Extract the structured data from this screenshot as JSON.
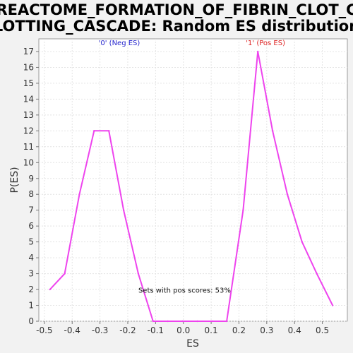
{
  "chart_data": {
    "type": "line",
    "title_lines": [
      "REACTOME_FORMATION_OF_FIBRIN_CLOT_C",
      "LOTTING_CASCADE: Random ES distribution"
    ],
    "xlabel": "ES",
    "ylabel": "P(ES)",
    "xlim": [
      -0.52,
      0.59
    ],
    "ylim": [
      0,
      17.8
    ],
    "x_ticks": [
      -0.5,
      -0.4,
      -0.3,
      -0.2,
      -0.1,
      0.0,
      0.1,
      0.2,
      0.3,
      0.4,
      0.5
    ],
    "x_tick_labels": [
      "-0.5",
      "-0.4",
      "-0.3",
      "-0.2",
      "-0.1",
      "0.0",
      "0.1",
      "0.2",
      "0.3",
      "0.4",
      "0.5"
    ],
    "y_ticks": [
      0,
      1,
      2,
      3,
      4,
      5,
      6,
      7,
      8,
      9,
      10,
      11,
      12,
      13,
      14,
      15,
      16,
      17
    ],
    "grid": true,
    "series": [
      {
        "color": "#ee44ee",
        "points": [
          [
            -0.48,
            2
          ],
          [
            -0.427,
            3
          ],
          [
            -0.374,
            8
          ],
          [
            -0.321,
            12
          ],
          [
            -0.268,
            12
          ],
          [
            -0.215,
            7
          ],
          [
            -0.162,
            3
          ],
          [
            -0.109,
            0
          ],
          [
            -0.056,
            0
          ],
          [
            -0.003,
            0
          ],
          [
            0.05,
            0
          ],
          [
            0.103,
            0
          ],
          [
            0.156,
            0
          ],
          [
            0.215,
            7
          ],
          [
            0.268,
            17
          ],
          [
            0.321,
            12
          ],
          [
            0.374,
            8
          ],
          [
            0.427,
            5
          ],
          [
            0.48,
            3
          ],
          [
            0.537,
            1
          ]
        ]
      }
    ],
    "annotations": [
      {
        "text": "'0' (Neg ES)",
        "color": "#2222cc",
        "x": -0.305,
        "y": 17.4
      },
      {
        "text": "'1' (Pos ES)",
        "color": "#dd2222",
        "x": 0.225,
        "y": 17.4
      },
      {
        "text": "Sets with pos scores: 53%",
        "color": "#111111",
        "x": -0.162,
        "y": 1.8
      }
    ]
  }
}
